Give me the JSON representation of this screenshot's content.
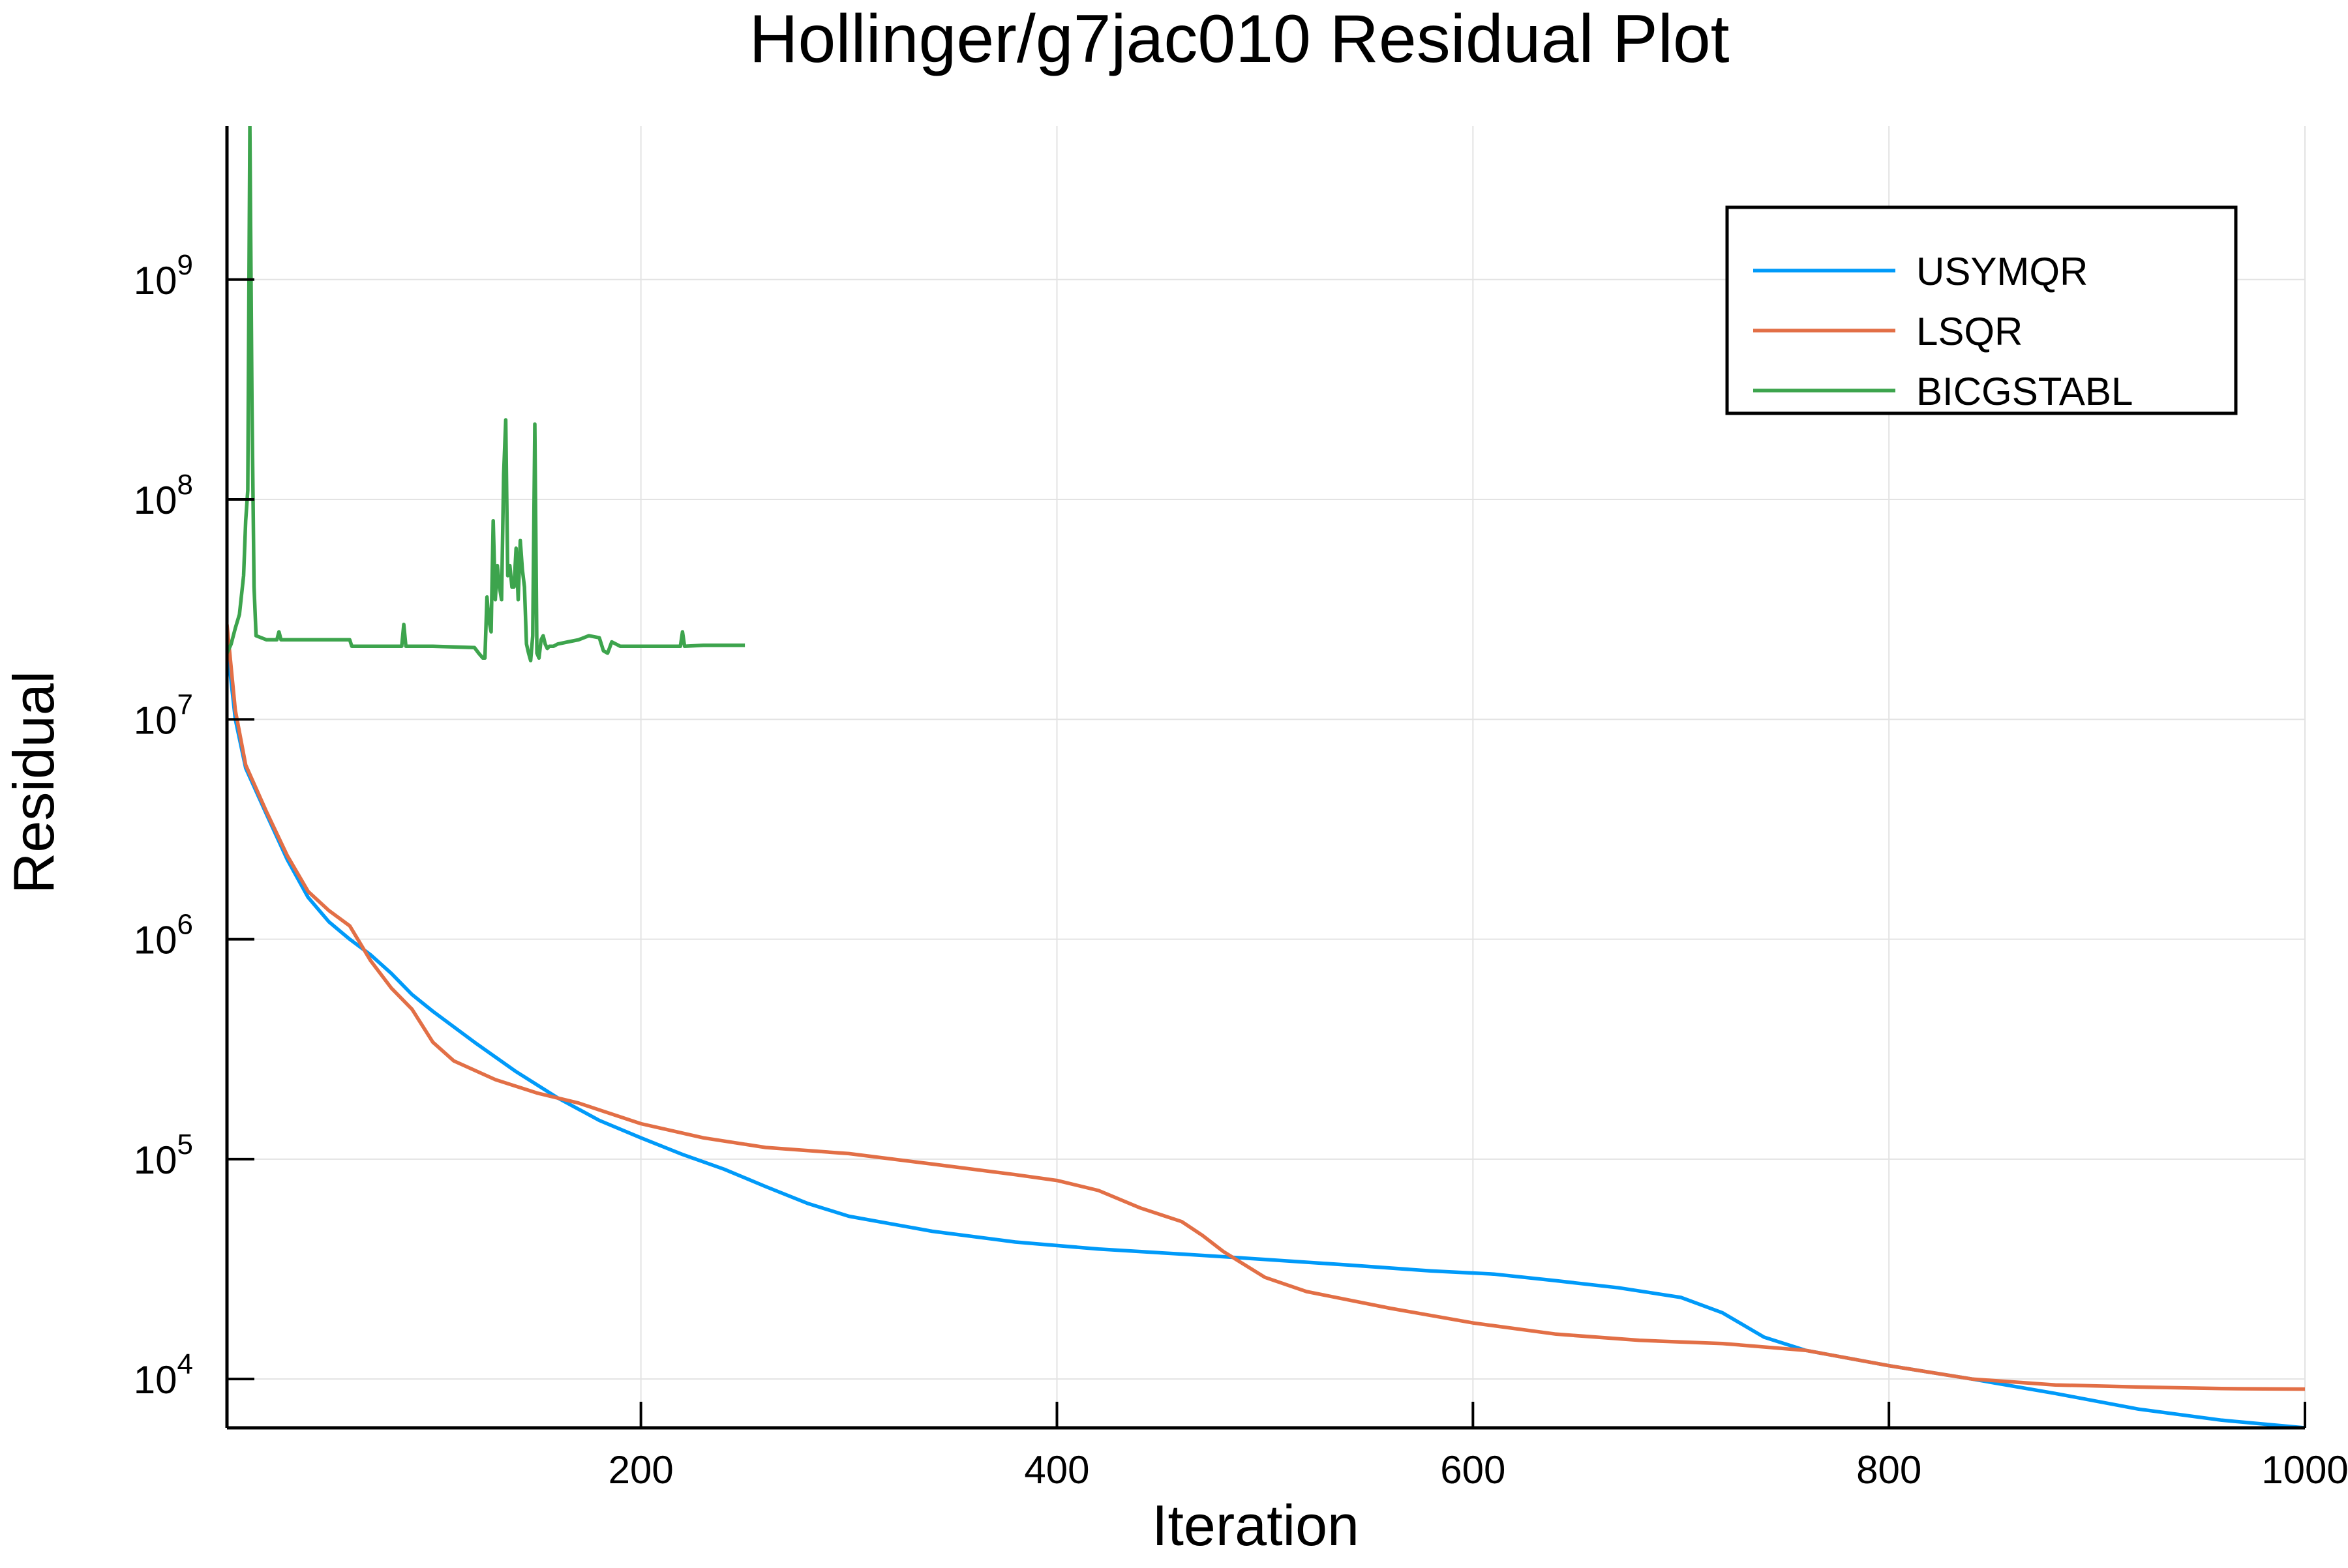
{
  "chart_data": {
    "type": "line",
    "title": "Hollinger/g7jac010 Residual Plot",
    "xlabel": "Iteration",
    "ylabel": "Residual",
    "xscale": "linear",
    "yscale": "log",
    "xlim": [
      1,
      1000
    ],
    "ylim": [
      6000,
      5000000000
    ],
    "xticks": [
      200,
      400,
      600,
      800,
      1000
    ],
    "xtick_labels": [
      "200",
      "400",
      "600",
      "800",
      "1000"
    ],
    "yticks": [
      10000,
      100000,
      1000000,
      10000000,
      100000000,
      1000000000
    ],
    "ytick_labels": [
      {
        "base": "10",
        "exp": "4"
      },
      {
        "base": "10",
        "exp": "5"
      },
      {
        "base": "10",
        "exp": "6"
      },
      {
        "base": "10",
        "exp": "7"
      },
      {
        "base": "10",
        "exp": "8"
      },
      {
        "base": "10",
        "exp": "9"
      }
    ],
    "grid": true,
    "legend_position": "top-right",
    "series": [
      {
        "name": "USYMQR",
        "color": "#009af9",
        "x": [
          1,
          5,
          10,
          20,
          30,
          40,
          50,
          60,
          70,
          80,
          90,
          100,
          120,
          140,
          160,
          180,
          200,
          220,
          240,
          260,
          280,
          300,
          340,
          380,
          420,
          460,
          500,
          540,
          580,
          610,
          640,
          670,
          700,
          720,
          740,
          760,
          800,
          840,
          880,
          920,
          960,
          1000
        ],
        "y": [
          22000000,
          10000000,
          6000000,
          3700000,
          2300000,
          1550000,
          1200000,
          1000000,
          850000,
          700000,
          560000,
          470000,
          340000,
          250000,
          190000,
          150000,
          125000,
          105000,
          90000,
          75000,
          63000,
          55000,
          47000,
          42000,
          39000,
          37000,
          35000,
          33000,
          31000,
          30000,
          28000,
          26000,
          23500,
          20000,
          15500,
          13500,
          11500,
          10000,
          8600,
          7300,
          6500,
          6000
        ]
      },
      {
        "name": "LSQR",
        "color": "#e26f46",
        "x": [
          1,
          5,
          10,
          20,
          30,
          40,
          50,
          60,
          70,
          80,
          90,
          100,
          110,
          130,
          150,
          170,
          200,
          230,
          260,
          300,
          340,
          380,
          400,
          420,
          440,
          460,
          470,
          480,
          500,
          520,
          560,
          600,
          640,
          680,
          720,
          760,
          800,
          840,
          880,
          920,
          960,
          1000
        ],
        "y": [
          27000000,
          11000000,
          6200000,
          3800000,
          2400000,
          1650000,
          1350000,
          1150000,
          800000,
          600000,
          480000,
          340000,
          280000,
          230000,
          200000,
          180000,
          145000,
          125000,
          113000,
          106000,
          95000,
          85000,
          80000,
          72000,
          60000,
          52000,
          45000,
          38000,
          29000,
          25000,
          21000,
          18000,
          16000,
          15000,
          14500,
          13500,
          11500,
          10000,
          9400,
          9200,
          9050,
          9000
        ]
      },
      {
        "name": "BICGSTABL",
        "color": "#3da44d",
        "x": [
          1,
          3,
          5,
          7,
          9,
          10,
          11,
          12,
          13,
          14,
          15,
          20,
          25,
          26,
          27,
          40,
          60,
          61,
          62,
          70,
          85,
          86,
          87,
          88,
          100,
          120,
          122,
          124,
          125,
          126,
          127,
          128,
          129,
          130,
          131,
          132,
          133,
          134,
          135,
          136,
          137,
          138,
          139,
          140,
          141,
          142,
          143,
          144,
          145,
          146,
          147,
          148,
          149,
          150,
          151,
          152,
          153,
          154,
          155,
          156,
          158,
          160,
          165,
          170,
          175,
          180,
          182,
          184,
          186,
          190,
          195,
          200,
          210,
          219,
          220,
          221,
          230,
          240,
          250
        ],
        "y": [
          20000000,
          22000000,
          26000000,
          30000000,
          45000000,
          80000000,
          110000000,
          5000000000,
          280000000,
          40000000,
          24000000,
          23000000,
          23000000,
          25000000,
          23000000,
          23000000,
          23000000,
          21500000,
          21500000,
          21500000,
          21500000,
          27000000,
          21500000,
          21500000,
          21500000,
          21200000,
          20000000,
          19000000,
          19000000,
          36000000,
          28000000,
          25000000,
          80000000,
          35000000,
          50000000,
          40000000,
          35000000,
          130000000,
          230000000,
          45000000,
          50000000,
          40000000,
          40000000,
          60000000,
          35000000,
          65000000,
          48000000,
          40000000,
          22000000,
          20000000,
          18500000,
          24000000,
          220000000,
          20000000,
          19000000,
          23000000,
          24000000,
          22000000,
          21000000,
          21500000,
          21500000,
          22000000,
          22500000,
          23000000,
          24000000,
          23500000,
          20500000,
          20000000,
          22500000,
          21500000,
          21500000,
          21500000,
          21500000,
          21500000,
          25000000,
          21500000,
          21700000,
          21700000,
          21700000
        ]
      }
    ]
  }
}
